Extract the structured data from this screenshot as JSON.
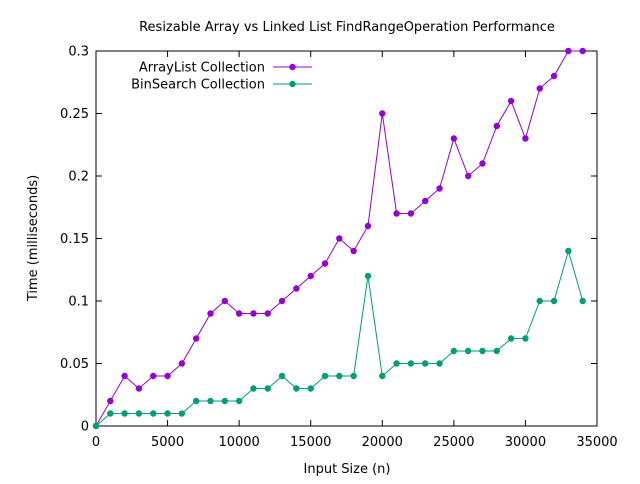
{
  "chart_data": {
    "type": "line",
    "title": "Resizable Array vs Linked List FindRangeOperation Performance",
    "xlabel": "Input Size (n)",
    "ylabel": "Time (milliseconds)",
    "xlim": [
      0,
      35000
    ],
    "ylim": [
      0,
      0.3
    ],
    "xticks": [
      0,
      5000,
      10000,
      15000,
      20000,
      25000,
      30000,
      35000
    ],
    "xtick_labels": [
      "0",
      "5000",
      "10000",
      "15000",
      "20000",
      "25000",
      "30000",
      "35000"
    ],
    "yticks": [
      0,
      0.05,
      0.1,
      0.15,
      0.2,
      0.25,
      0.3
    ],
    "ytick_labels": [
      "0",
      "0.05",
      "0.1",
      "0.15",
      "0.2",
      "0.25",
      "0.3"
    ],
    "grid": false,
    "legend_position": "top-left",
    "x": [
      0,
      1000,
      2000,
      3000,
      4000,
      5000,
      6000,
      7000,
      8000,
      9000,
      10000,
      11000,
      12000,
      13000,
      14000,
      15000,
      16000,
      17000,
      18000,
      19000,
      20000,
      21000,
      22000,
      23000,
      24000,
      25000,
      26000,
      27000,
      28000,
      29000,
      30000,
      31000,
      32000,
      33000,
      34000
    ],
    "series": [
      {
        "name": "ArrayList Collection",
        "color": "#9400d3",
        "values": [
          0,
          0.02,
          0.04,
          0.03,
          0.04,
          0.04,
          0.05,
          0.07,
          0.09,
          0.1,
          0.09,
          0.09,
          0.09,
          0.1,
          0.11,
          0.12,
          0.13,
          0.15,
          0.14,
          0.16,
          0.25,
          0.17,
          0.17,
          0.18,
          0.19,
          0.23,
          0.2,
          0.21,
          0.24,
          0.26,
          0.23,
          0.27,
          0.28,
          0.3,
          0.3
        ]
      },
      {
        "name": "BinSearch Collection",
        "color": "#009e73",
        "values": [
          0,
          0.01,
          0.01,
          0.01,
          0.01,
          0.01,
          0.01,
          0.02,
          0.02,
          0.02,
          0.02,
          0.03,
          0.03,
          0.04,
          0.03,
          0.03,
          0.04,
          0.04,
          0.04,
          0.12,
          0.04,
          0.05,
          0.05,
          0.05,
          0.05,
          0.06,
          0.06,
          0.06,
          0.06,
          0.07,
          0.07,
          0.1,
          0.1,
          0.14,
          0.1
        ]
      }
    ]
  }
}
